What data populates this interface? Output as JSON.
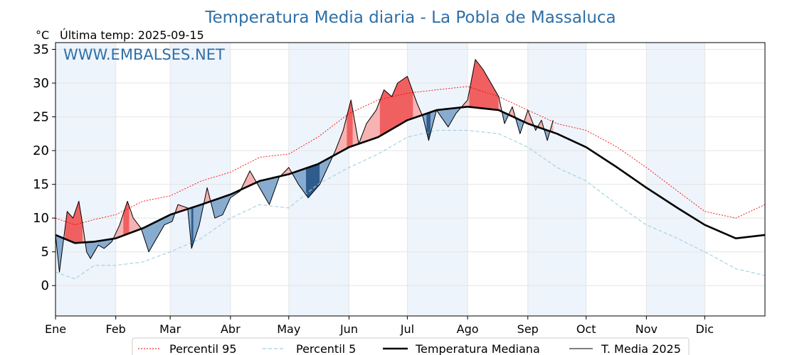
{
  "chart_data": {
    "type": "line",
    "title": "Temperatura Media diaria - La Pobla de Massaluca",
    "unit_label": "°C",
    "last_temp_label": "Última temp: 2025-09-15",
    "watermark": "WWW.EMBALSES.NET",
    "ylim": [
      -4.5,
      36
    ],
    "yticks": [
      0,
      5,
      10,
      15,
      20,
      25,
      30,
      35
    ],
    "xlim": [
      0,
      365
    ],
    "x_unit": "day of year",
    "months": [
      {
        "label": "Ene",
        "day": 0
      },
      {
        "label": "Feb",
        "day": 31
      },
      {
        "label": "Mar",
        "day": 59
      },
      {
        "label": "Abr",
        "day": 90
      },
      {
        "label": "May",
        "day": 120
      },
      {
        "label": "Jun",
        "day": 151
      },
      {
        "label": "Jul",
        "day": 181
      },
      {
        "label": "Ago",
        "day": 212
      },
      {
        "label": "Sep",
        "day": 243
      },
      {
        "label": "Oct",
        "day": 273
      },
      {
        "label": "Nov",
        "day": 304
      },
      {
        "label": "Dic",
        "day": 334
      }
    ],
    "grid": true,
    "legend_position": "bottom",
    "series": [
      {
        "name": "Percentil 95",
        "color": "#ff0000",
        "style": "dotted",
        "points": [
          [
            0,
            10
          ],
          [
            10,
            9
          ],
          [
            20,
            9.8
          ],
          [
            31,
            10.5
          ],
          [
            45,
            12.5
          ],
          [
            59,
            13.3
          ],
          [
            75,
            15.5
          ],
          [
            90,
            16.8
          ],
          [
            105,
            19
          ],
          [
            120,
            19.5
          ],
          [
            135,
            22
          ],
          [
            151,
            25.5
          ],
          [
            166,
            27.5
          ],
          [
            181,
            28.5
          ],
          [
            196,
            29
          ],
          [
            212,
            29.5
          ],
          [
            228,
            28
          ],
          [
            243,
            26
          ],
          [
            258,
            24
          ],
          [
            273,
            23
          ],
          [
            289,
            20.5
          ],
          [
            304,
            17.5
          ],
          [
            320,
            14
          ],
          [
            334,
            11
          ],
          [
            350,
            10
          ],
          [
            365,
            12
          ]
        ]
      },
      {
        "name": "Percentil 5",
        "color": "#9fd0de",
        "style": "dashed",
        "points": [
          [
            0,
            2
          ],
          [
            10,
            1
          ],
          [
            20,
            3
          ],
          [
            31,
            3
          ],
          [
            45,
            3.5
          ],
          [
            59,
            5
          ],
          [
            75,
            7
          ],
          [
            90,
            10
          ],
          [
            105,
            12
          ],
          [
            120,
            11.5
          ],
          [
            135,
            15
          ],
          [
            151,
            17.5
          ],
          [
            166,
            19.5
          ],
          [
            181,
            22
          ],
          [
            196,
            23
          ],
          [
            212,
            23
          ],
          [
            228,
            22.5
          ],
          [
            243,
            20.5
          ],
          [
            258,
            17.5
          ],
          [
            273,
            15.5
          ],
          [
            289,
            12
          ],
          [
            304,
            9
          ],
          [
            320,
            7
          ],
          [
            334,
            5
          ],
          [
            350,
            2.5
          ],
          [
            365,
            1.5
          ]
        ]
      },
      {
        "name": "Temperatura Mediana",
        "color": "#000000",
        "style": "bold",
        "points": [
          [
            0,
            7.5
          ],
          [
            10,
            6.3
          ],
          [
            20,
            6.5
          ],
          [
            31,
            7
          ],
          [
            45,
            8.5
          ],
          [
            59,
            10.5
          ],
          [
            75,
            12
          ],
          [
            90,
            13.5
          ],
          [
            105,
            15.5
          ],
          [
            120,
            16.5
          ],
          [
            135,
            18
          ],
          [
            151,
            20.5
          ],
          [
            166,
            22
          ],
          [
            181,
            24.5
          ],
          [
            196,
            26
          ],
          [
            212,
            26.5
          ],
          [
            228,
            26
          ],
          [
            243,
            24
          ],
          [
            258,
            22.5
          ],
          [
            273,
            20.5
          ],
          [
            289,
            17.5
          ],
          [
            304,
            14.5
          ],
          [
            320,
            11.5
          ],
          [
            334,
            9
          ],
          [
            350,
            7
          ],
          [
            365,
            7.5
          ]
        ]
      },
      {
        "name": "T. Media 2025",
        "color": "#000000",
        "style": "thin",
        "points": [
          [
            0,
            7.5
          ],
          [
            2,
            2
          ],
          [
            6,
            11
          ],
          [
            9,
            10
          ],
          [
            12,
            12.5
          ],
          [
            14,
            9
          ],
          [
            16,
            5
          ],
          [
            18,
            4
          ],
          [
            22,
            6
          ],
          [
            25,
            5.5
          ],
          [
            29,
            6.5
          ],
          [
            33,
            9
          ],
          [
            37,
            12.5
          ],
          [
            40,
            10
          ],
          [
            44,
            8.5
          ],
          [
            48,
            5
          ],
          [
            52,
            7
          ],
          [
            56,
            9
          ],
          [
            60,
            9.5
          ],
          [
            63,
            12
          ],
          [
            68,
            11.5
          ],
          [
            70,
            5.5
          ],
          [
            74,
            9
          ],
          [
            78,
            14.5
          ],
          [
            82,
            10
          ],
          [
            86,
            10.5
          ],
          [
            90,
            13
          ],
          [
            95,
            14
          ],
          [
            100,
            17
          ],
          [
            105,
            14.5
          ],
          [
            110,
            12
          ],
          [
            115,
            16
          ],
          [
            120,
            17.5
          ],
          [
            125,
            15
          ],
          [
            130,
            13
          ],
          [
            136,
            15
          ],
          [
            140,
            17.5
          ],
          [
            144,
            20
          ],
          [
            148,
            23
          ],
          [
            152,
            27.5
          ],
          [
            156,
            21
          ],
          [
            160,
            24
          ],
          [
            165,
            26
          ],
          [
            169,
            29
          ],
          [
            173,
            28
          ],
          [
            176,
            30
          ],
          [
            181,
            31
          ],
          [
            186,
            27
          ],
          [
            189,
            25
          ],
          [
            192,
            21.5
          ],
          [
            196,
            26
          ],
          [
            202,
            23.5
          ],
          [
            206,
            25.5
          ],
          [
            212,
            27.5
          ],
          [
            216,
            33.5
          ],
          [
            220,
            32
          ],
          [
            224,
            30
          ],
          [
            228,
            28
          ],
          [
            231,
            24
          ],
          [
            235,
            26.5
          ],
          [
            239,
            22.5
          ],
          [
            243,
            26
          ],
          [
            247,
            23
          ],
          [
            250,
            24.5
          ],
          [
            253,
            21.5
          ],
          [
            256,
            24.5
          ]
        ]
      }
    ]
  },
  "legend": {
    "items": [
      {
        "label": "Percentil 95",
        "color": "#ff0000",
        "style": "dotted"
      },
      {
        "label": "Percentil 5",
        "color": "#9fd0de",
        "style": "dashed"
      },
      {
        "label": "Temperatura Mediana",
        "color": "#000000",
        "style": "bold"
      },
      {
        "label": "T. Media 2025",
        "color": "#000000",
        "style": "thin"
      }
    ]
  },
  "colors": {
    "title": "#2e6fa8",
    "watermark": "#2e6fa8",
    "band": "#eef4fb",
    "above_fill": "#f7b3b3",
    "above_extreme": "#f06060",
    "below_fill": "#88acd0",
    "below_extreme": "#2f5c8c"
  }
}
